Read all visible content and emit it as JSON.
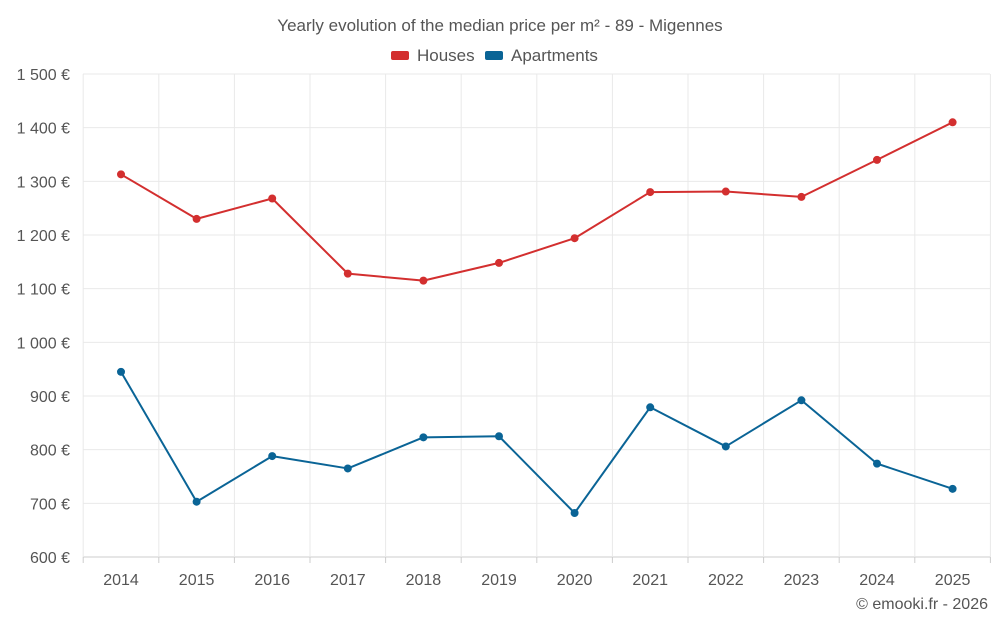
{
  "colors": {
    "houses": "#d32f2f",
    "apartments": "#0a6496",
    "grid": "#e9e9e9",
    "axis": "#cccccc",
    "text": "#555555"
  },
  "chart_data": {
    "type": "line",
    "title": "Yearly evolution of the median price per m² - 89 - Migennes",
    "xlabel": "",
    "ylabel": "",
    "categories": [
      "2014",
      "2015",
      "2016",
      "2017",
      "2018",
      "2019",
      "2020",
      "2021",
      "2022",
      "2023",
      "2024",
      "2025"
    ],
    "ylim": [
      600,
      1500
    ],
    "yticks": [
      600,
      700,
      800,
      900,
      1000,
      1100,
      1200,
      1300,
      1400,
      1500
    ],
    "ytick_labels": [
      "600 €",
      "700 €",
      "800 €",
      "900 €",
      "1 000 €",
      "1 100 €",
      "1 200 €",
      "1 300 €",
      "1 400 €",
      "1 500 €"
    ],
    "grid": true,
    "legend_position": "top-center",
    "series": [
      {
        "name": "Houses",
        "color_key": "houses",
        "values": [
          1313,
          1230,
          1268,
          1128,
          1115,
          1148,
          1194,
          1280,
          1281,
          1271,
          1340,
          1410
        ]
      },
      {
        "name": "Apartments",
        "color_key": "apartments",
        "values": [
          945,
          703,
          788,
          765,
          823,
          825,
          682,
          879,
          806,
          892,
          774,
          727
        ]
      }
    ],
    "credit": "© emooki.fr - 2026"
  }
}
